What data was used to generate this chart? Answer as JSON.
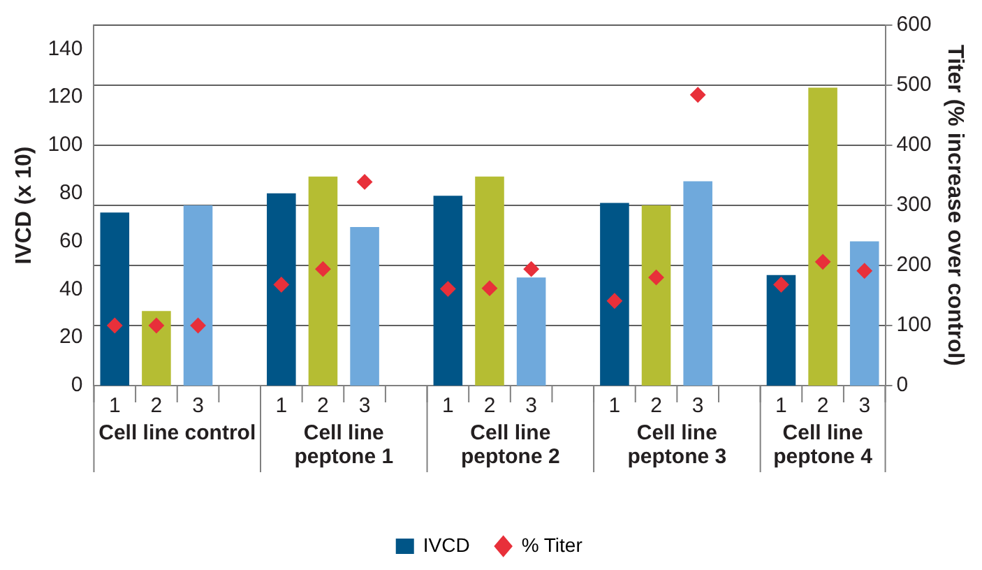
{
  "chart_data": {
    "type": "bar",
    "categories": [
      "1",
      "2",
      "3",
      null,
      "1",
      "2",
      "3",
      null,
      "1",
      "2",
      "3",
      null,
      "1",
      "2",
      "3",
      null,
      "1",
      "2",
      "3"
    ],
    "series": [
      {
        "name": "IVCD",
        "color": "#005587",
        "colors": [
          "#005587",
          "#b5bd33",
          "#6fa9dc",
          null,
          "#005587",
          "#b5bd33",
          "#6fa9dc",
          null,
          "#005587",
          "#b5bd33",
          "#6fa9dc",
          null,
          "#005587",
          "#b5bd33",
          "#6fa9dc",
          null,
          "#005587",
          "#b5bd33",
          "#6fa9dc"
        ],
        "values": [
          72,
          31,
          75,
          null,
          80,
          87,
          66,
          null,
          79,
          87,
          45,
          null,
          76,
          75,
          85,
          null,
          46,
          124,
          60
        ]
      },
      {
        "name": "% Titer",
        "type": "scatter",
        "axis": "y2",
        "color": "#e8303a",
        "marker": "diamond",
        "values": [
          100,
          100,
          100,
          null,
          168,
          194,
          339,
          null,
          161,
          162,
          194,
          null,
          141,
          180,
          484,
          null,
          168,
          206,
          191
        ]
      }
    ],
    "annotations": [
      "Cell line control",
      "Cell line peptone 1",
      "Cell line peptone 2",
      "Cell line peptone 3",
      "Cell line peptone 4"
    ],
    "ylabel": "IVCD (x 10)",
    "y2label": "Titer (% increase over control)",
    "ylim": [
      0,
      150
    ],
    "yticks": [
      0,
      20,
      40,
      60,
      80,
      100,
      120,
      140
    ],
    "y2lim": [
      0,
      600
    ],
    "y2ticks": [
      0,
      100,
      200,
      300,
      400,
      500,
      600
    ],
    "grid": "y2",
    "legend": "bottom"
  }
}
